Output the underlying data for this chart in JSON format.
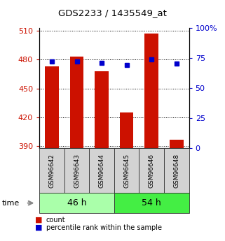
{
  "title": "GDS2233 / 1435549_at",
  "samples": [
    "GSM96642",
    "GSM96643",
    "GSM96644",
    "GSM96645",
    "GSM96646",
    "GSM96648"
  ],
  "count_values": [
    473,
    483,
    468,
    425,
    507,
    397
  ],
  "percentile_values": [
    72,
    72,
    71,
    69,
    74,
    70
  ],
  "ylim_left": [
    388,
    513
  ],
  "ylim_right": [
    0,
    100
  ],
  "yticks_left": [
    390,
    420,
    450,
    480,
    510
  ],
  "yticks_right": [
    0,
    25,
    50,
    75,
    100
  ],
  "ytick_labels_right": [
    "0",
    "25",
    "50",
    "75",
    "100%"
  ],
  "groups": [
    {
      "label": "46 h",
      "indices": [
        0,
        1,
        2
      ],
      "color": "#aaffaa"
    },
    {
      "label": "54 h",
      "indices": [
        3,
        4,
        5
      ],
      "color": "#44ee44"
    }
  ],
  "bar_color": "#cc1100",
  "dot_color": "#0000cc",
  "bar_width": 0.55,
  "left_tick_color": "#cc1100",
  "right_tick_color": "#0000cc",
  "legend_items": [
    {
      "label": "count",
      "color": "#cc1100"
    },
    {
      "label": "percentile rank within the sample",
      "color": "#0000cc"
    }
  ],
  "time_label": "time",
  "background_color": "#ffffff"
}
